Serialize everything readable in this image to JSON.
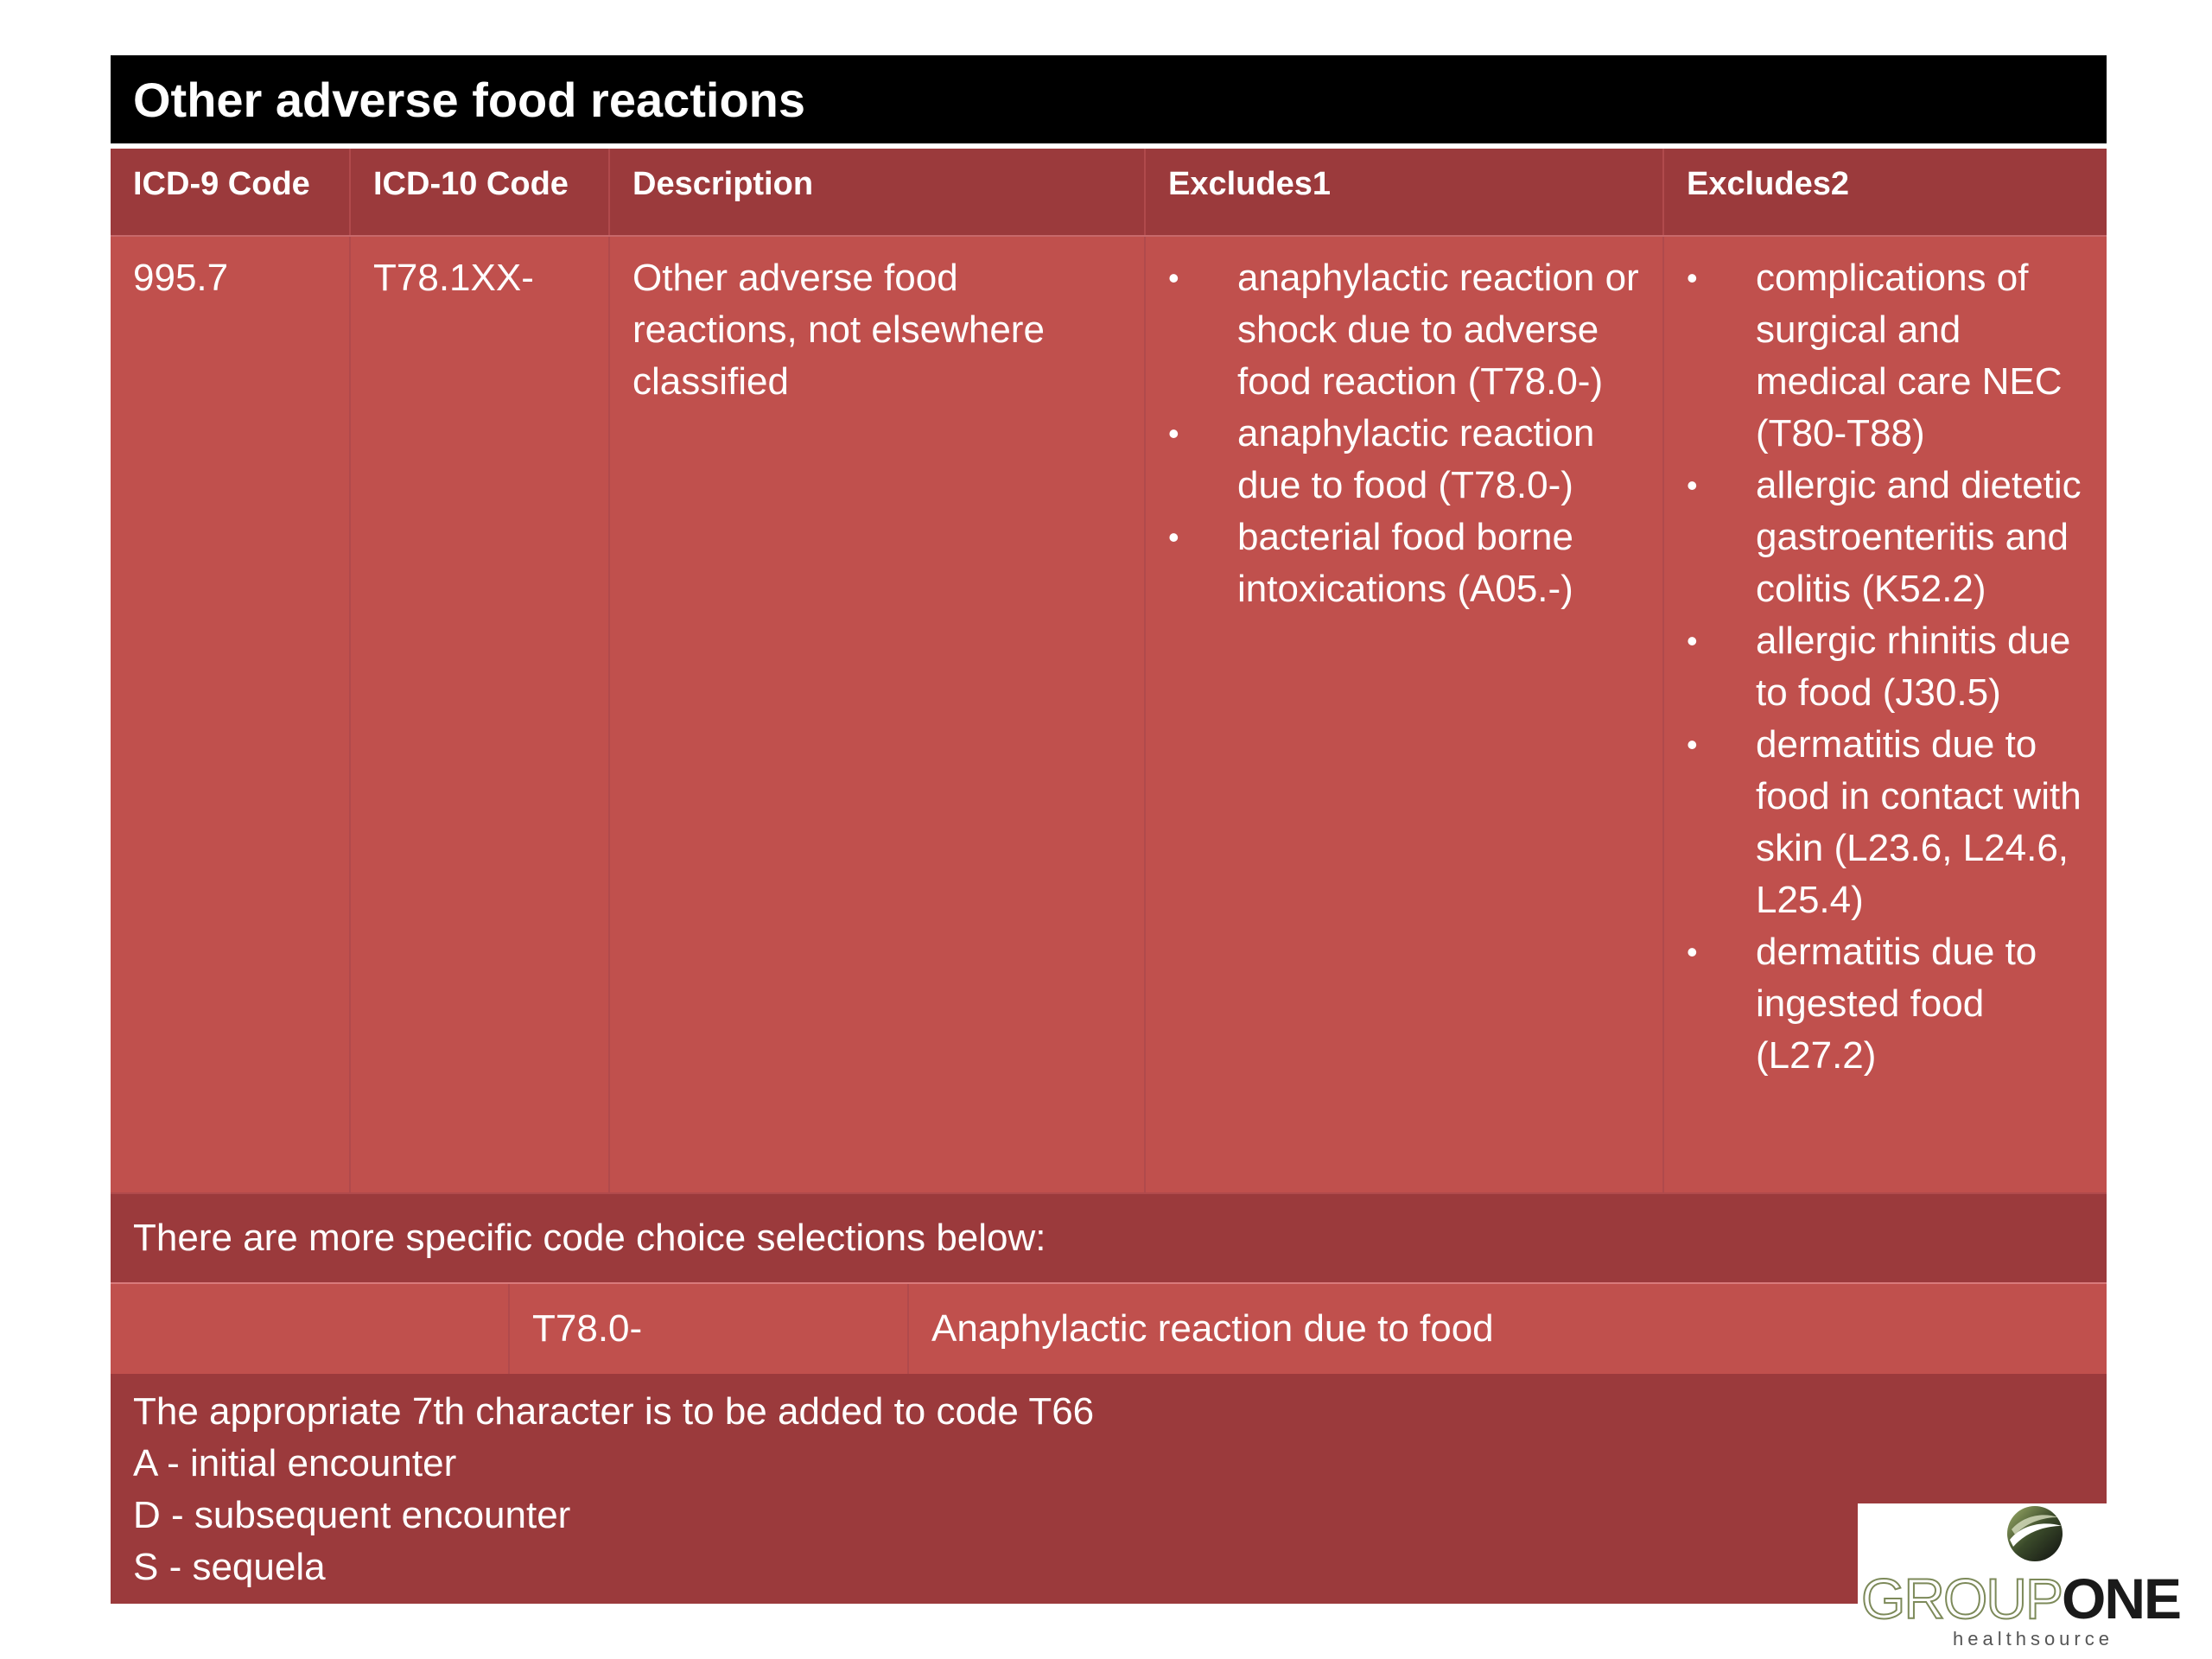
{
  "title": "Other adverse food reactions",
  "table": {
    "headers": [
      "ICD-9 Code",
      "ICD-10 Code",
      "Description",
      "Excludes1",
      "Excludes2"
    ],
    "row": {
      "icd9": "995.7",
      "icd10": "T78.1XX-",
      "description": "Other adverse food reactions, not elsewhere classified",
      "excludes1": [
        "anaphylactic reaction or shock due to adverse food reaction (T78.0-)",
        "anaphylactic reaction due to food (T78.0-)",
        "bacterial food borne intoxications (A05.-)"
      ],
      "excludes2": [
        "complications of surgical and medical care NEC (T80-T88)",
        "allergic and dietetic gastroenteritis and colitis (K52.2)",
        "allergic rhinitis due to food (J30.5)",
        "dermatitis due to food in contact with skin (L23.6, L24.6, L25.4)",
        "dermatitis due to ingested food (L27.2)"
      ]
    }
  },
  "more_specific": "There are more specific code choice selections below:",
  "sub_row": {
    "code": "T78.0-",
    "description": "Anaphylactic reaction due to food"
  },
  "note": {
    "lines": [
      "The appropriate 7th character is to be added to code T66",
      "A - initial encounter",
      "D - subsequent encounter",
      "S - sequela"
    ]
  },
  "logo": {
    "word1": "GROUP",
    "word2": "ONE",
    "tagline": "healthsource"
  },
  "colors": {
    "title_bg": "#000000",
    "header_bg": "#9b3a3c",
    "body_bg": "#c0504d"
  }
}
